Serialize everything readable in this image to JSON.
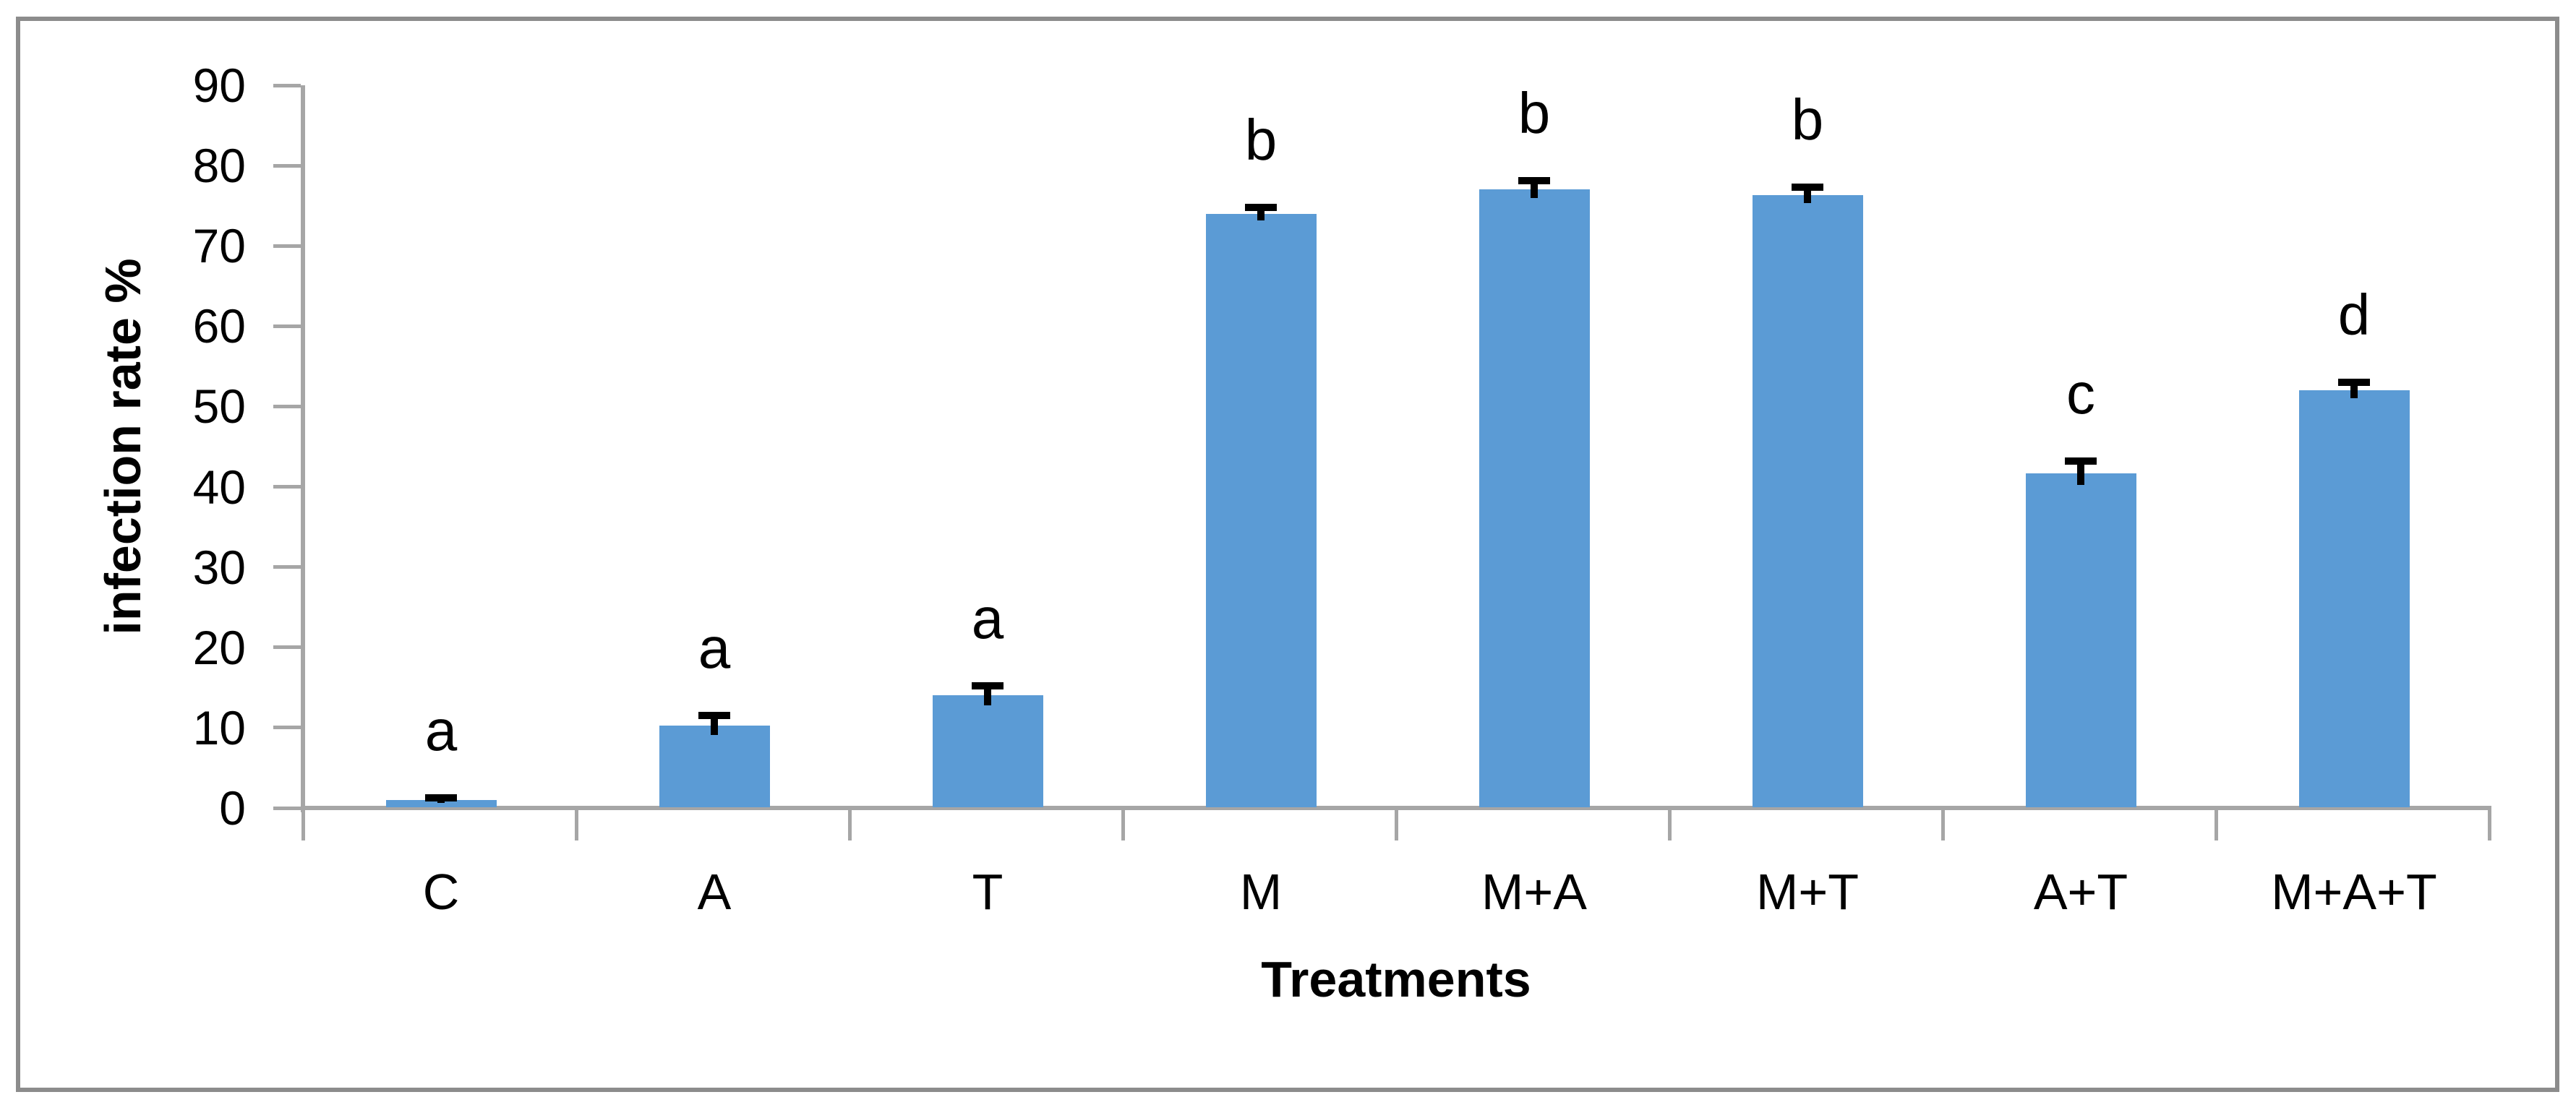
{
  "chart_data": {
    "type": "bar",
    "title": "",
    "xlabel": "Treatments",
    "ylabel": "infection rate %",
    "categories": [
      "C",
      "A",
      "T",
      "M",
      "M+A",
      "M+T",
      "A+T",
      "M+A+T"
    ],
    "values": [
      1,
      10.3,
      14,
      74,
      77,
      76.3,
      41.7,
      52
    ],
    "errors": [
      0.3,
      1.2,
      1.2,
      0.8,
      1.1,
      1.0,
      1.5,
      1.0
    ],
    "significance_letters": [
      "a",
      "a",
      "a",
      "b",
      "b",
      "b",
      "c",
      "d"
    ],
    "ylim": [
      0,
      90
    ],
    "ytick_step": 10,
    "ytick_labels": [
      "0",
      "10",
      "20",
      "30",
      "40",
      "50",
      "60",
      "70",
      "80",
      "90"
    ],
    "grid": false,
    "legend_position": "none",
    "bar_color": "#5B9BD5",
    "axis_color": "#A6A6A6",
    "error_bar_color": "#000000",
    "frame_color": "#8C8C8C",
    "text_color": "#000000"
  }
}
